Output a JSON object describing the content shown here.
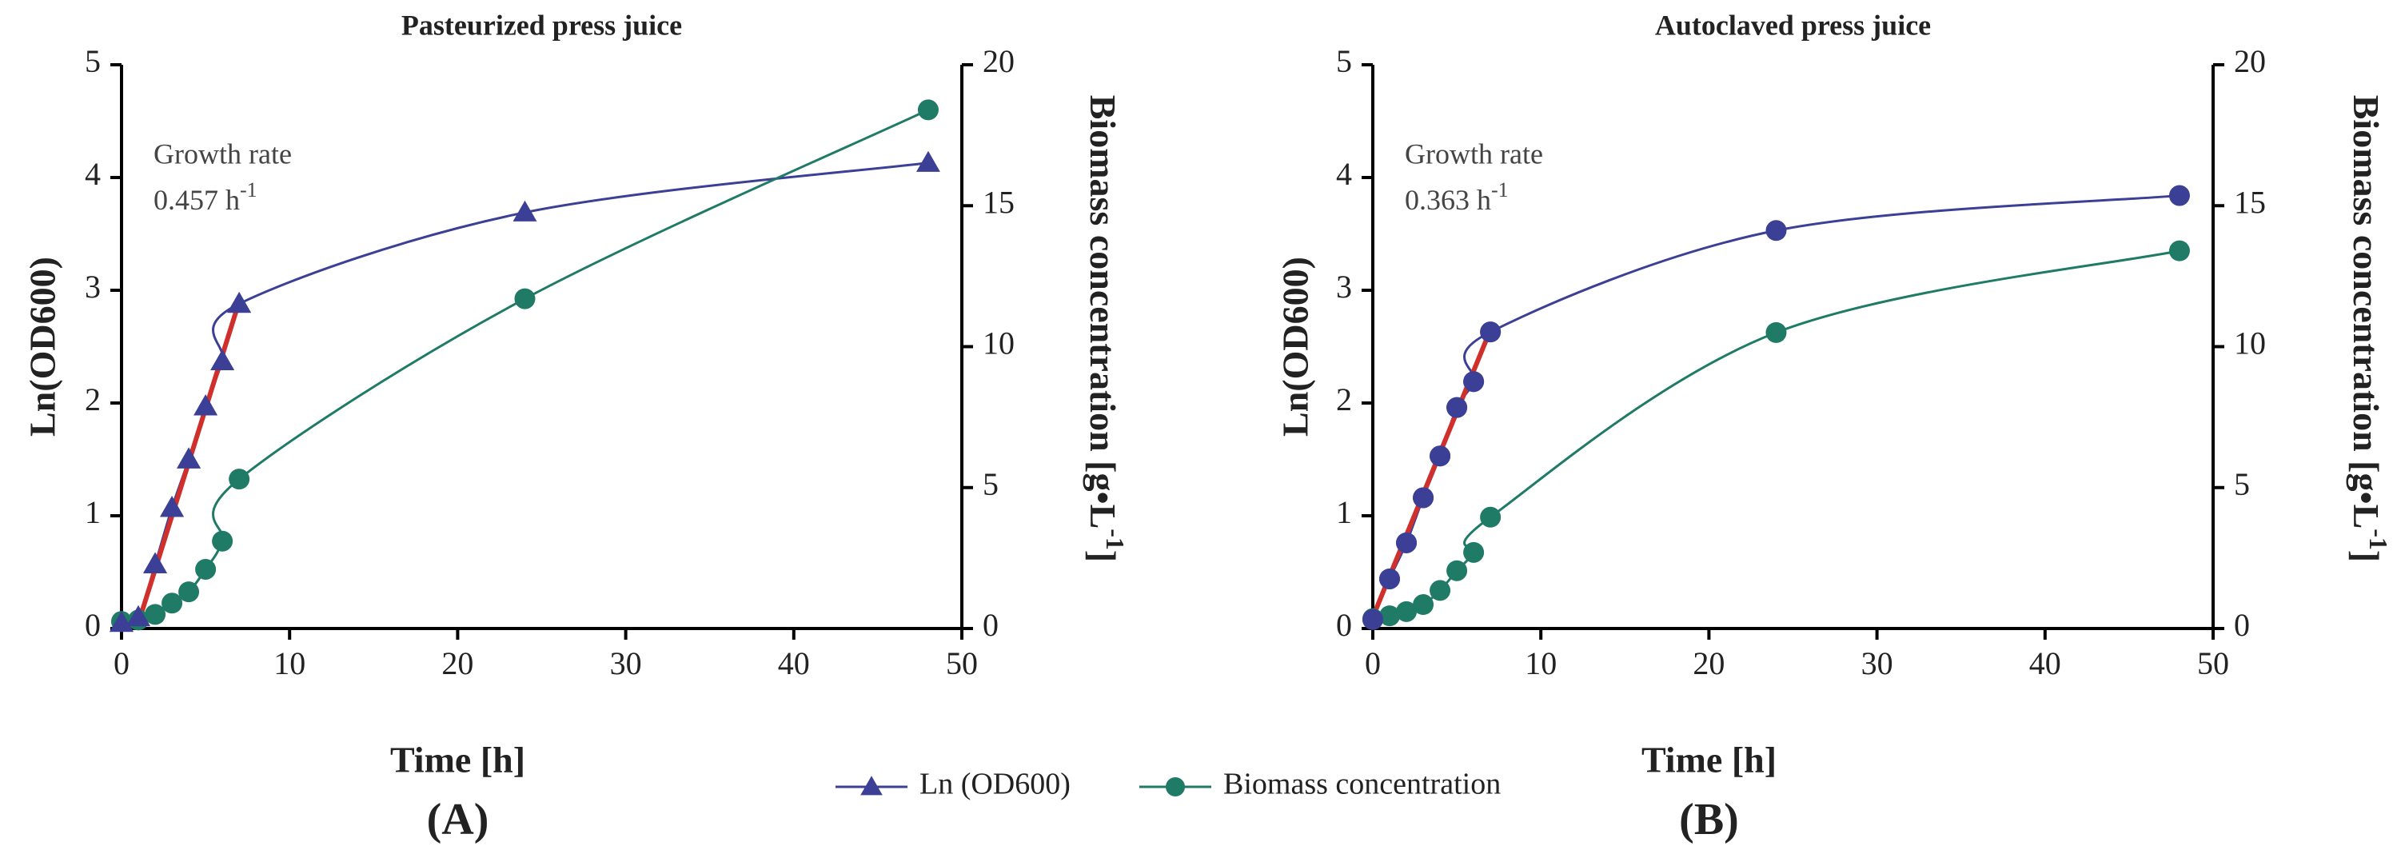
{
  "chart_data": [
    {
      "type": "line",
      "title": "Pasteurized press juice",
      "x_label": "Time [h]",
      "y_label": "Ln(OD600)",
      "y2_label": "Biomass concentration [g•L",
      "y2_label_sup": "-1",
      "y2_label_end": "]",
      "panel": "(A)",
      "annotation": [
        "Growth rate",
        "0.457 h"
      ],
      "annotation_sup": "-1",
      "xlim": [
        0,
        50
      ],
      "xticks": [
        0,
        10,
        20,
        30,
        40,
        50
      ],
      "ylim": [
        0,
        5
      ],
      "yticks": [
        0,
        1,
        2,
        3,
        4,
        5
      ],
      "y2lim": [
        0,
        20
      ],
      "y2ticks": [
        0,
        5,
        10,
        15,
        20
      ],
      "x": [
        0,
        1,
        2,
        3,
        4,
        5,
        6,
        7,
        24,
        48
      ],
      "series": [
        {
          "name": "Ln (OD600)",
          "color": "#3b3f96",
          "marker": "triangle",
          "values": [
            0.05,
            0.1,
            0.57,
            1.07,
            1.5,
            1.97,
            2.37,
            2.88,
            3.69,
            4.13
          ]
        },
        {
          "name": "Biomass concentration",
          "color": "#1f7a66",
          "marker": "circle",
          "axis": "y2",
          "values": [
            0.25,
            0.3,
            0.5,
            0.9,
            1.3,
            2.1,
            3.1,
            5.3,
            11.7,
            18.4
          ]
        }
      ],
      "trend": {
        "color": "#d0302c",
        "x": [
          0.9,
          7
        ],
        "values": [
          0,
          2.9
        ]
      }
    },
    {
      "type": "line",
      "title": "Autoclaved press juice",
      "x_label": "Time [h]",
      "y_label": "Ln(OD600)",
      "y2_label": "Biomass concentration [g•L",
      "y2_label_sup": "-1",
      "y2_label_end": "]",
      "panel": "(B)",
      "annotation": [
        "Growth rate",
        "0.363 h"
      ],
      "annotation_sup": "-1",
      "xlim": [
        0,
        50
      ],
      "xticks": [
        0,
        10,
        20,
        30,
        40,
        50
      ],
      "ylim": [
        0,
        5
      ],
      "yticks": [
        0,
        1,
        2,
        3,
        4,
        5
      ],
      "y2lim": [
        0,
        20
      ],
      "y2ticks": [
        0,
        5,
        10,
        15,
        20
      ],
      "x": [
        0,
        1,
        2,
        3,
        4,
        5,
        6,
        7,
        24,
        48
      ],
      "series": [
        {
          "name": "Ln (OD600)",
          "color": "#3b3f96",
          "marker": "circle",
          "values": [
            0.08,
            0.44,
            0.76,
            1.16,
            1.53,
            1.96,
            2.19,
            2.63,
            3.53,
            3.84
          ]
        },
        {
          "name": "Biomass concentration",
          "color": "#1f7a66",
          "marker": "circle",
          "axis": "y2",
          "values": [
            0.35,
            0.45,
            0.6,
            0.85,
            1.35,
            2.05,
            2.7,
            3.95,
            10.5,
            13.4
          ]
        }
      ],
      "trend": {
        "color": "#d0302c",
        "x": [
          0,
          7
        ],
        "values": [
          0.1,
          2.65
        ]
      }
    }
  ]
}
